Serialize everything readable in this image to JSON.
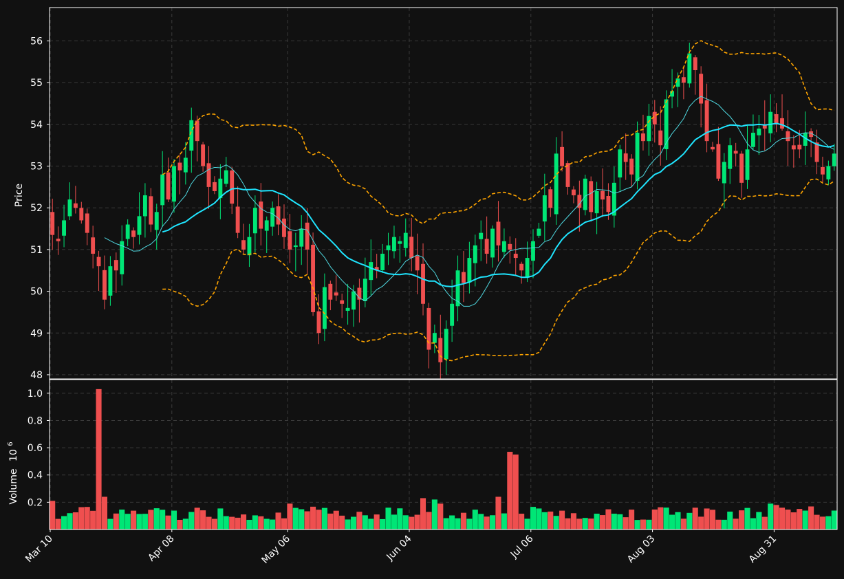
{
  "colors": {
    "background": "#111111",
    "up": "#00e676",
    "down": "#ef4f4f",
    "band": "#ffa500",
    "ma_fast": "#4fd8e0",
    "ma_slow": "#1fe5ff",
    "grid": "#3a3a3a",
    "frame": "#ffffff"
  },
  "chart_data": {
    "type": "candlestick",
    "grid": true,
    "price_panel": {
      "ylabel": "Price",
      "ylim": [
        47.9,
        56.8
      ],
      "yticks": [
        "48",
        "49",
        "50",
        "51",
        "52",
        "53",
        "54",
        "55",
        "56"
      ],
      "ytick_values": [
        48,
        49,
        50,
        51,
        52,
        53,
        54,
        55,
        56
      ]
    },
    "volume_panel": {
      "ylabel": "Volume",
      "ylabel_exponent": "10",
      "ylabel_exponent_power": "6",
      "ylim": [
        0,
        1.1
      ],
      "yticks": [
        "0.2",
        "0.4",
        "0.6",
        "0.8",
        "1.0"
      ],
      "ytick_values": [
        0.2,
        0.4,
        0.6,
        0.8,
        1.0
      ]
    },
    "xticks": [
      "Mar 10",
      "Apr 08",
      "May 06",
      "Jun 04",
      "Jul 06",
      "Aug 03",
      "Aug 31"
    ],
    "xtick_indices": [
      0,
      21,
      41,
      62,
      83,
      104,
      125
    ],
    "ohlc_close": [
      51.35,
      51.2,
      51.7,
      52.2,
      52.0,
      51.7,
      51.4,
      50.9,
      50.6,
      49.8,
      50.6,
      50.5,
      51.2,
      51.6,
      51.3,
      51.8,
      52.3,
      51.6,
      51.9,
      52.8,
      52.2,
      53.0,
      52.9,
      53.2,
      54.1,
      53.6,
      53.0,
      52.5,
      52.4,
      52.7,
      52.9,
      52.1,
      51.4,
      51.0,
      51.3,
      52.0,
      51.5,
      51.7,
      52.0,
      51.6,
      51.3,
      51.0,
      51.1,
      51.5,
      51.0,
      49.5,
      49.0,
      50.1,
      49.8,
      49.9,
      49.7,
      49.6,
      50.0,
      49.8,
      50.3,
      50.7,
      50.5,
      50.9,
      51.1,
      51.3,
      51.2,
      51.4,
      50.8,
      50.5,
      49.7,
      48.6,
      49.0,
      48.3,
      49.1,
      49.7,
      50.5,
      50.2,
      50.8,
      51.1,
      51.4,
      50.9,
      51.5,
      51.1,
      51.2,
      51.0,
      50.8,
      50.5,
      50.8,
      51.2,
      51.5,
      52.3,
      52.0,
      53.3,
      53.0,
      52.5,
      52.3,
      52.0,
      52.7,
      51.9,
      52.4,
      52.2,
      51.9,
      52.6,
      53.4,
      53.1,
      52.8,
      53.8,
      53.6,
      54.2,
      54.0,
      53.5,
      54.6,
      54.8,
      55.1,
      55.0,
      55.7,
      55.3,
      54.5,
      53.6,
      53.4,
      52.7,
      53.1,
      53.5,
      53.3,
      52.6,
      53.4,
      53.8,
      53.9,
      53.9,
      54.3,
      54.0,
      53.9,
      53.6,
      53.4,
      53.4,
      53.8,
      53.7,
      53.1,
      52.8,
      53.0,
      53.3
    ]
  }
}
